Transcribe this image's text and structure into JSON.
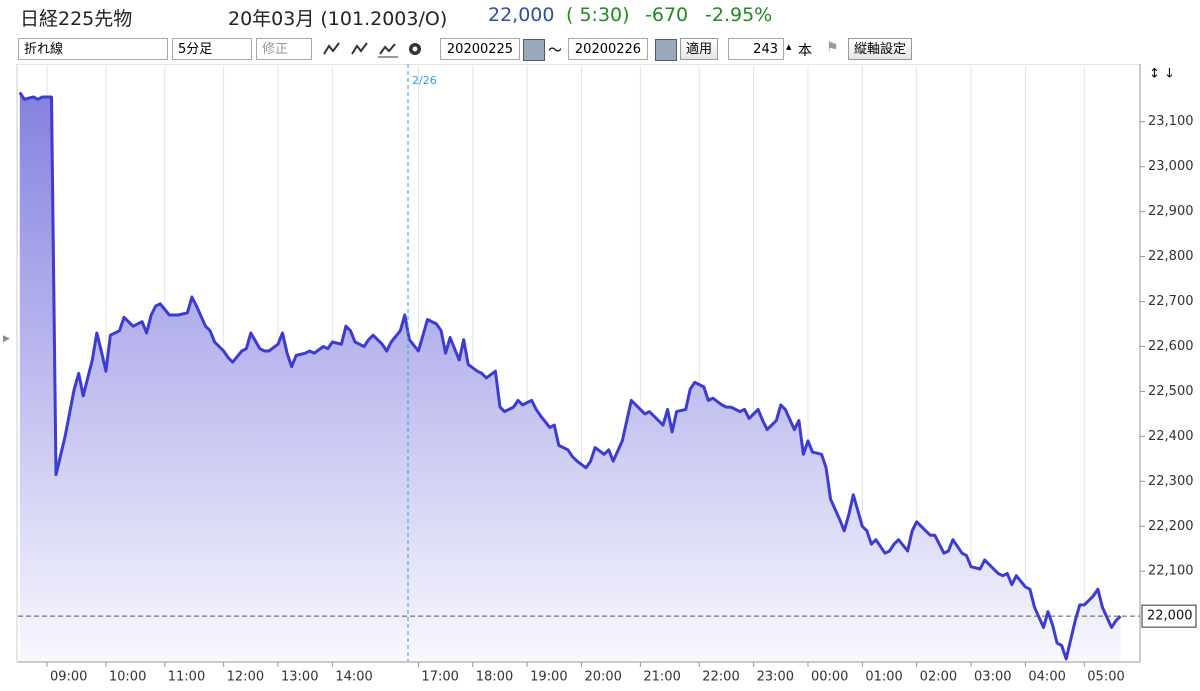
{
  "header": {
    "title": "日経225先物",
    "contract": "20年03月 (101.2003/O)",
    "price": "22,000",
    "time": "( 5:30)",
    "change": "-670",
    "change_pct": "-2.95%"
  },
  "toolbar": {
    "chart_type": "折れ線",
    "interval": "5分足",
    "adjust": "修正",
    "from": "20200225",
    "separator": "〜",
    "to": "20200226",
    "apply": "適用",
    "count": "243",
    "count_unit": "本",
    "axis_settings": "縦軸設定"
  },
  "chart_data": {
    "type": "line",
    "color": "#3c3cd2",
    "x": [
      -7,
      -6,
      -4,
      -3,
      -2,
      0,
      1,
      3,
      5,
      6,
      7,
      9,
      10,
      11,
      12,
      13,
      15,
      16,
      18,
      20,
      21,
      22,
      23,
      24,
      26,
      28,
      30,
      31,
      32,
      34,
      35,
      36,
      38,
      39,
      40,
      42,
      43,
      44,
      46,
      47,
      48,
      50,
      51,
      52,
      53,
      54,
      56,
      57,
      58,
      60,
      61,
      62,
      64,
      65,
      66,
      67,
      69,
      70,
      71,
      73,
      74,
      75,
      77,
      78,
      79,
      81,
      82,
      83,
      85,
      86,
      87,
      88,
      90,
      91,
      92,
      94,
      95,
      96,
      98,
      99,
      100,
      102,
      103,
      104,
      106,
      107,
      108,
      110,
      111,
      112,
      114,
      115,
      116,
      118,
      119,
      120,
      122,
      123,
      124,
      126,
      127,
      128,
      130,
      131,
      132,
      134,
      135,
      136,
      137,
      138,
      140,
      141,
      142,
      144,
      145,
      146,
      148,
      149,
      150,
      152,
      153,
      154,
      156,
      157,
      158,
      160,
      161,
      162,
      164,
      165,
      166,
      167,
      168,
      170,
      171,
      172,
      174,
      175,
      176,
      177,
      179,
      180,
      181,
      182,
      184,
      185,
      186,
      187,
      189,
      190,
      191,
      193,
      194,
      195,
      197,
      198,
      199,
      201,
      202,
      203,
      205,
      206,
      207,
      209,
      210,
      211,
      212,
      213,
      215,
      216,
      217,
      219,
      220,
      221,
      222,
      223,
      224,
      226,
      227,
      228,
      230,
      231,
      232,
      234,
      235,
      236
    ],
    "values": [
      23165,
      23150,
      23155,
      23150,
      23155,
      23155,
      22315,
      22400,
      22505,
      22540,
      22490,
      22570,
      22630,
      22590,
      22545,
      22625,
      22635,
      22665,
      22645,
      22655,
      22630,
      22670,
      22690,
      22695,
      22670,
      22670,
      22675,
      22710,
      22690,
      22645,
      22635,
      22610,
      22590,
      22575,
      22565,
      22590,
      22595,
      22630,
      22595,
      22590,
      22590,
      22605,
      22630,
      22585,
      22555,
      22580,
      22585,
      22590,
      22585,
      22600,
      22595,
      22610,
      22605,
      22645,
      22635,
      22610,
      22600,
      22615,
      22625,
      22605,
      22590,
      22610,
      22635,
      22670,
      22615,
      22590,
      22625,
      22660,
      22650,
      22635,
      22585,
      22620,
      22570,
      22615,
      22560,
      22545,
      22540,
      22530,
      22545,
      22465,
      22455,
      22465,
      22480,
      22470,
      22480,
      22460,
      22445,
      22420,
      22425,
      22380,
      22370,
      22355,
      22345,
      22330,
      22345,
      22375,
      22360,
      22370,
      22345,
      22390,
      22435,
      22480,
      22460,
      22450,
      22455,
      22435,
      22425,
      22460,
      22410,
      22455,
      22460,
      22505,
      22520,
      22510,
      22480,
      22485,
      22470,
      22465,
      22465,
      22455,
      22460,
      22440,
      22460,
      22435,
      22415,
      22435,
      22470,
      22460,
      22415,
      22435,
      22360,
      22390,
      22365,
      22360,
      22330,
      22260,
      22215,
      22190,
      22225,
      22270,
      22200,
      22190,
      22160,
      22170,
      22140,
      22145,
      22160,
      22170,
      22145,
      22190,
      22210,
      22190,
      22180,
      22180,
      22140,
      22145,
      22170,
      22140,
      22135,
      22110,
      22105,
      22125,
      22115,
      22095,
      22090,
      22095,
      22070,
      22090,
      22065,
      22060,
      22020,
      21975,
      22010,
      21980,
      21940,
      21935,
      21905,
      21990,
      22025,
      22025,
      22045,
      22060,
      22020,
      21975,
      21990,
      22000
    ],
    "xlim": [
      -7.4,
      240.3
    ],
    "xticks": [
      {
        "value": -1,
        "label": "09:00"
      },
      {
        "value": 12,
        "label": "10:00"
      },
      {
        "value": 25,
        "label": "11:00"
      },
      {
        "value": 38,
        "label": "12:00"
      },
      {
        "value": 50,
        "label": "13:00"
      },
      {
        "value": 62,
        "label": "14:00"
      },
      {
        "value": 81,
        "label": "17:00"
      },
      {
        "value": 93,
        "label": "18:00"
      },
      {
        "value": 105,
        "label": "19:00"
      },
      {
        "value": 117,
        "label": "20:00"
      },
      {
        "value": 130,
        "label": "21:00"
      },
      {
        "value": 143,
        "label": "22:00"
      },
      {
        "value": 155,
        "label": "23:00"
      },
      {
        "value": 167,
        "label": "00:00"
      },
      {
        "value": 179,
        "label": "01:00"
      },
      {
        "value": 191,
        "label": "02:00"
      },
      {
        "value": 203,
        "label": "03:00"
      },
      {
        "value": 215,
        "label": "04:00"
      },
      {
        "value": 228,
        "label": "05:00"
      }
    ],
    "ylim": [
      21898,
      23224
    ],
    "yticks": [
      {
        "value": 22100,
        "label": "22,100"
      },
      {
        "value": 22200,
        "label": "22,200"
      },
      {
        "value": 22300,
        "label": "22,300"
      },
      {
        "value": 22400,
        "label": "22,400"
      },
      {
        "value": 22500,
        "label": "22,500"
      },
      {
        "value": 22600,
        "label": "22,600"
      },
      {
        "value": 22700,
        "label": "22,700"
      },
      {
        "value": 22800,
        "label": "22,800"
      },
      {
        "value": 22900,
        "label": "22,900"
      },
      {
        "value": 23000,
        "label": "23,000"
      },
      {
        "value": 23100,
        "label": "23,100"
      }
    ],
    "price_line": {
      "value": 22000,
      "label": "22,000"
    },
    "annotations": [
      {
        "label": "2/26",
        "x": 78.7
      }
    ],
    "grid": true
  }
}
